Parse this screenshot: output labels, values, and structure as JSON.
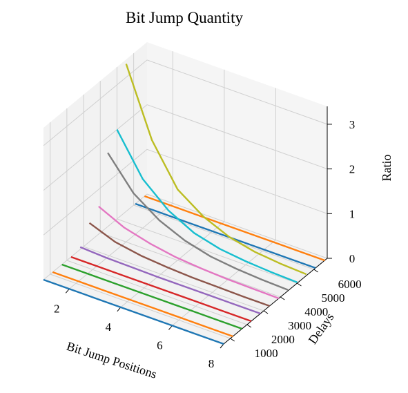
{
  "chart_data": {
    "type": "line",
    "projection": "3d",
    "title": "Bit Jump Quantity",
    "xlabel": "Bit Jump Positions",
    "ylabel": "Delays",
    "zlabel": "Ratio",
    "x_ticks": [
      2,
      4,
      6,
      8
    ],
    "y_ticks": [
      1000,
      2000,
      3000,
      4000,
      5000,
      6000
    ],
    "z_ticks": [
      0,
      1,
      2,
      3
    ],
    "xlim": [
      1,
      8
    ],
    "ylim": [
      600,
      6800
    ],
    "zlim": [
      0,
      3.4
    ],
    "grid": true,
    "series": [
      {
        "delay": 600,
        "color": "#1f77b4",
        "x": [
          1,
          2,
          3,
          4,
          5,
          6,
          7,
          8
        ],
        "z": [
          0,
          0,
          0,
          0,
          0,
          0,
          0,
          0
        ]
      },
      {
        "delay": 1150,
        "color": "#ff7f0e",
        "x": [
          1,
          2,
          3,
          4,
          5,
          6,
          7,
          8
        ],
        "z": [
          0,
          0,
          0,
          0,
          0,
          0,
          0,
          0
        ]
      },
      {
        "delay": 1700,
        "color": "#2ca02c",
        "x": [
          1,
          2,
          3,
          4,
          5,
          6,
          7,
          8
        ],
        "z": [
          0,
          0,
          0,
          0,
          0,
          0,
          0,
          0
        ]
      },
      {
        "delay": 2250,
        "color": "#d62728",
        "x": [
          1,
          2,
          3,
          4,
          5,
          6,
          7,
          8
        ],
        "z": [
          0,
          0,
          0,
          0,
          0,
          0,
          0,
          0
        ]
      },
      {
        "delay": 2800,
        "color": "#9467bd",
        "x": [
          1,
          2,
          3,
          4,
          5,
          6,
          7,
          8
        ],
        "z": [
          0.05,
          0.02,
          0.01,
          0,
          0,
          0,
          0,
          0
        ]
      },
      {
        "delay": 3350,
        "color": "#8c564b",
        "x": [
          1,
          2,
          3,
          4,
          5,
          6,
          7,
          8
        ],
        "z": [
          0.42,
          0.2,
          0.1,
          0.05,
          0.02,
          0.01,
          0,
          0
        ]
      },
      {
        "delay": 3900,
        "color": "#e377c2",
        "x": [
          1,
          2,
          3,
          4,
          5,
          6,
          7,
          8
        ],
        "z": [
          0.62,
          0.35,
          0.2,
          0.1,
          0.05,
          0.02,
          0.01,
          0
        ]
      },
      {
        "delay": 4450,
        "color": "#7f7f7f",
        "x": [
          1,
          2,
          3,
          4,
          5,
          6,
          7,
          8
        ],
        "z": [
          1.65,
          0.95,
          0.55,
          0.3,
          0.15,
          0.08,
          0.04,
          0.02
        ]
      },
      {
        "delay": 5000,
        "color": "#17becf",
        "x": [
          1,
          2,
          3,
          4,
          5,
          6,
          7,
          8
        ],
        "z": [
          2.0,
          1.1,
          0.6,
          0.3,
          0.15,
          0.08,
          0.04,
          0.02
        ]
      },
      {
        "delay": 5550,
        "color": "#bcbd22",
        "x": [
          1,
          2,
          3,
          4,
          5,
          6,
          7,
          8
        ],
        "z": [
          3.3,
          1.8,
          0.9,
          0.5,
          0.25,
          0.12,
          0.06,
          0.03
        ]
      },
      {
        "delay": 6100,
        "color": "#1f77b4",
        "x": [
          1,
          2,
          3,
          4,
          5,
          6,
          7,
          8
        ],
        "z": [
          0,
          0,
          0,
          0,
          0,
          0,
          0,
          0
        ]
      },
      {
        "delay": 6650,
        "color": "#ff7f0e",
        "x": [
          1,
          2,
          3,
          4,
          5,
          6,
          7,
          8
        ],
        "z": [
          0,
          0,
          0,
          0,
          0,
          0,
          0,
          0
        ]
      }
    ]
  }
}
